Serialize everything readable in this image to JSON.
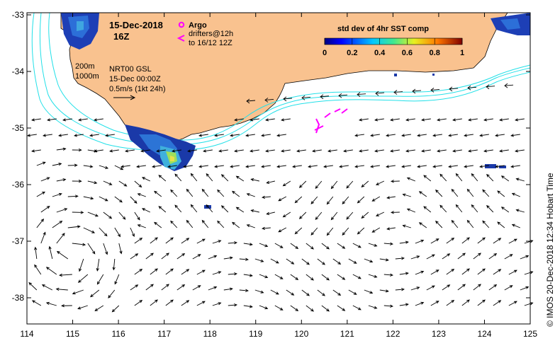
{
  "map": {
    "date": "15-Dec-2018",
    "time": "16Z",
    "legend": {
      "argo_label": "Argo",
      "drifters_line1": "drifters@12h",
      "drifters_line2": "to 16/12 12Z"
    },
    "colorbar": {
      "title": "std dev of 4hr SST comp",
      "ticks": [
        "0",
        "0.2",
        "0.4",
        "0.6",
        "0.8",
        "1"
      ]
    },
    "contours": {
      "label_200": "200m",
      "label_1000": "1000m"
    },
    "product": {
      "line1": "NRT00 GSL",
      "line2": "15-Dec 00:00Z",
      "line3": "0.5m/s (1kt 24h)"
    },
    "x_ticks": [
      "114",
      "115",
      "116",
      "117",
      "118",
      "119",
      "120",
      "121",
      "122",
      "123",
      "124",
      "125"
    ],
    "y_ticks": [
      "-33",
      "-34",
      "-35",
      "-36",
      "-37",
      "-38"
    ],
    "credit": "© IMOS 20-Dec-2018 12:34 Hobart Time",
    "colors": {
      "land": "#f9c28f",
      "bathymetry": "#22e0e8",
      "drifters": "#ff00ff",
      "arrows": "#000000"
    }
  }
}
